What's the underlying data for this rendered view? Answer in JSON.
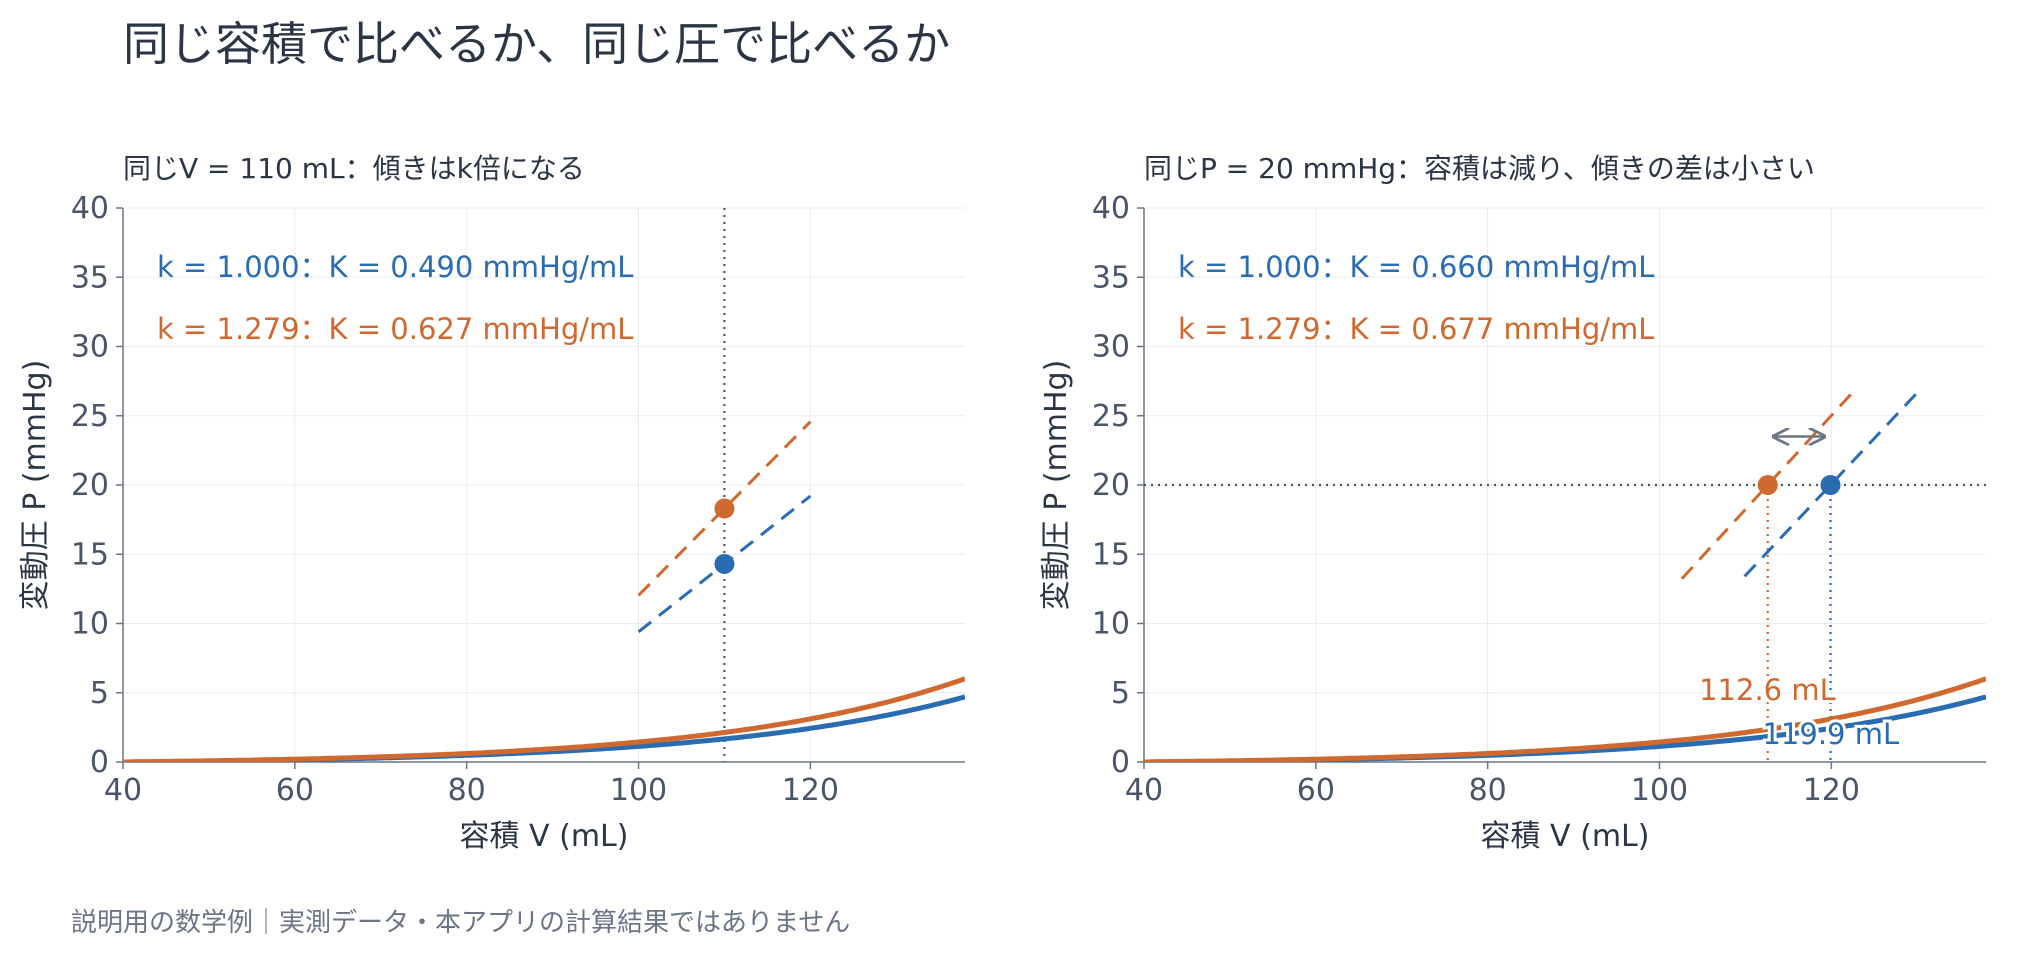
{
  "title": "同じ容積で比べるか、同じ圧で比べるか",
  "footnote": "説明用の数学例｜実測データ・本アプリの計算結果ではありません",
  "colors": {
    "blue": "#2a6cb1",
    "orange": "#d0692f",
    "axis": "#6b7585",
    "grid": "#e8ebef",
    "guide": "#4a5568",
    "arrow": "#6b7585"
  },
  "chart_data": [
    {
      "type": "line",
      "title": "同じV = 110 mL：傾きはk倍になる",
      "xlabel": "容積 V (mL)",
      "ylabel": "変動圧 P (mmHg)",
      "xlim": [
        40,
        138
      ],
      "ylim": [
        0,
        40
      ],
      "xticks": [
        40,
        60,
        80,
        100,
        120
      ],
      "yticks": [
        0,
        5,
        10,
        15,
        20,
        25,
        30,
        35,
        40
      ],
      "grid": true,
      "curve": {
        "v0": 40,
        "b": 0.035,
        "a": 0.1574
      },
      "series": [
        {
          "k": 1.0,
          "color": "#2a6cb1",
          "annotation": "k = 1.000：K = 0.490 mmHg/mL"
        },
        {
          "k": 1.279,
          "color": "#d0692f",
          "annotation": "k = 1.279：K = 0.627 mmHg/mL"
        }
      ],
      "points": [
        {
          "x": 110,
          "y": 14.3,
          "slope": 0.49,
          "color": "#2a6cb1"
        },
        {
          "x": 110,
          "y": 18.3,
          "slope": 0.627,
          "color": "#d0692f"
        }
      ],
      "vline": 110
    },
    {
      "type": "line",
      "title": "同じP = 20 mmHg：容積は減り、傾きの差は小さい",
      "xlabel": "容積 V (mL)",
      "ylabel": "変動圧 P (mmHg)",
      "xlim": [
        40,
        138
      ],
      "ylim": [
        0,
        40
      ],
      "xticks": [
        40,
        60,
        80,
        100,
        120
      ],
      "yticks": [
        0,
        5,
        10,
        15,
        20,
        25,
        30,
        35,
        40
      ],
      "grid": true,
      "curve": {
        "v0": 40,
        "b": 0.035,
        "a": 0.1574
      },
      "series": [
        {
          "k": 1.0,
          "color": "#2a6cb1",
          "annotation": "k = 1.000：K = 0.660 mmHg/mL"
        },
        {
          "k": 1.279,
          "color": "#d0692f",
          "annotation": "k = 1.279：K = 0.677 mmHg/mL"
        }
      ],
      "points": [
        {
          "x": 119.9,
          "y": 20,
          "slope": 0.66,
          "color": "#2a6cb1",
          "label": "119.9 mL"
        },
        {
          "x": 112.6,
          "y": 20,
          "slope": 0.677,
          "color": "#d0692f",
          "label": "112.6 mL"
        }
      ],
      "hline": 20,
      "arrow": {
        "x1": 112.6,
        "x2": 119.9,
        "y": 23.5
      }
    }
  ]
}
